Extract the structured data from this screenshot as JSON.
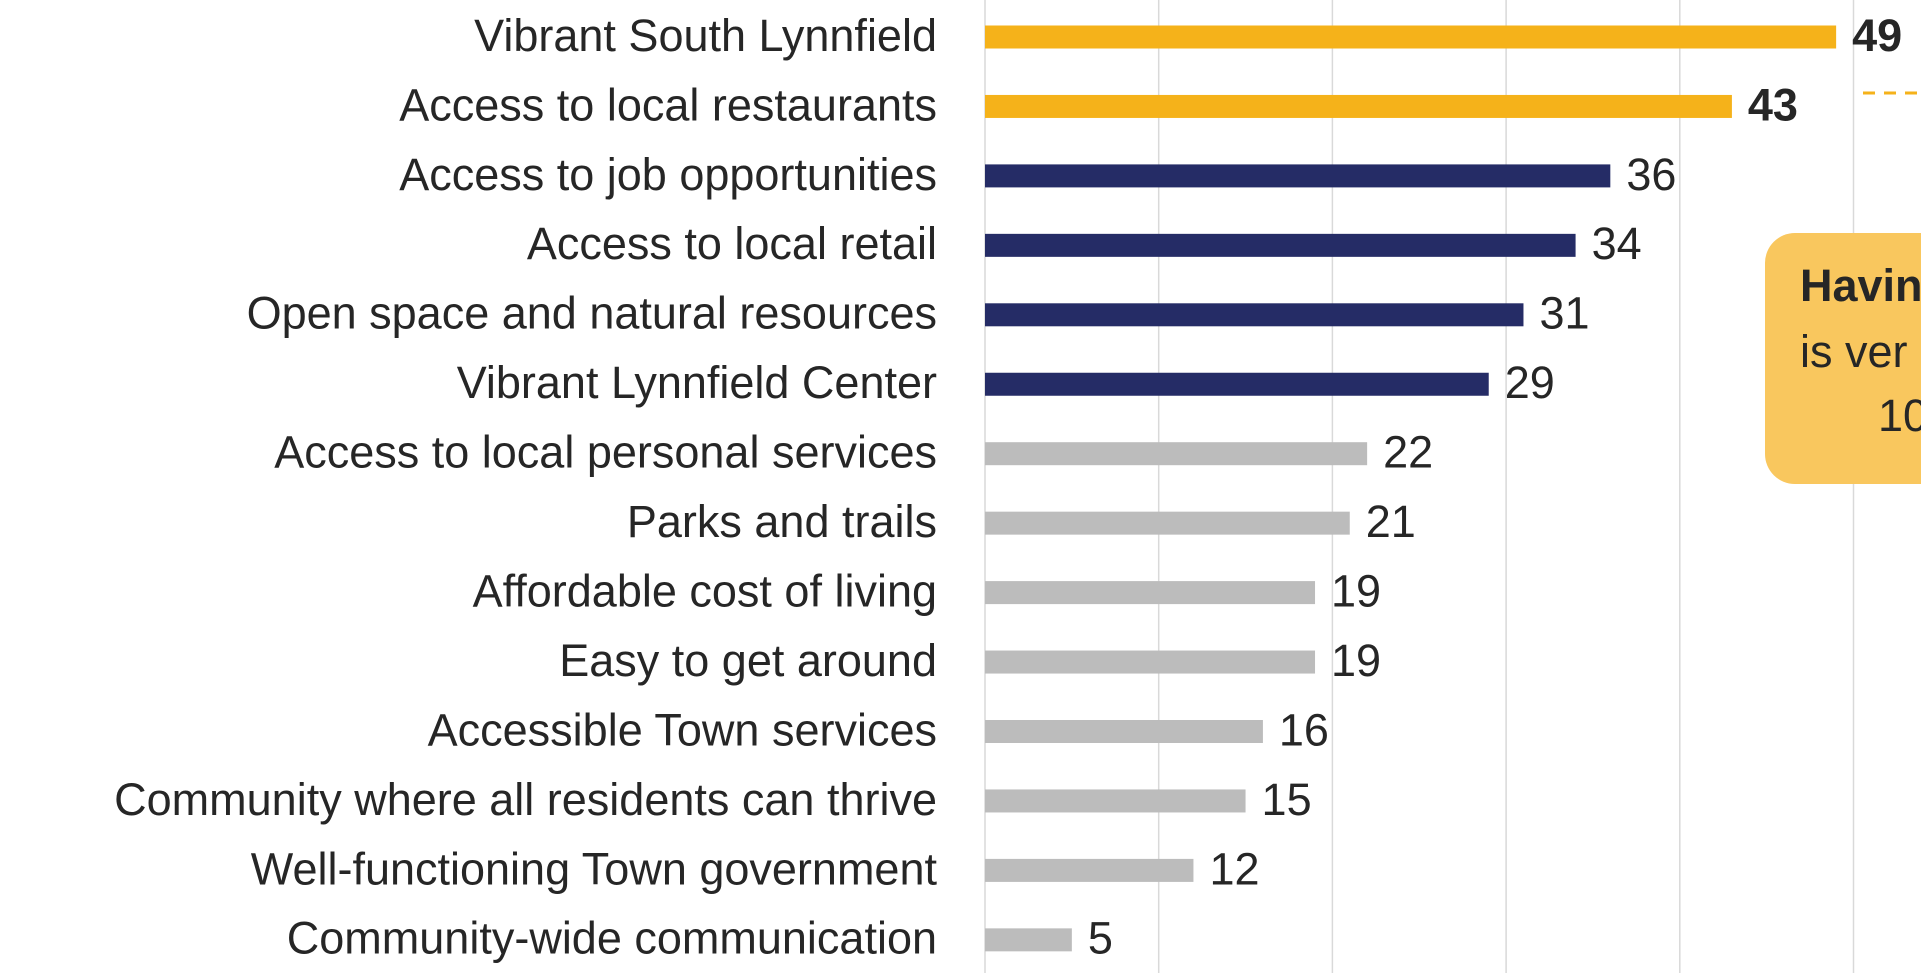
{
  "chart_data": {
    "type": "barh",
    "categories": [
      "Vibrant South Lynnfield",
      "Access to local restaurants",
      "Access to job opportunities",
      "Access to local retail",
      "Open space and natural resources",
      "Vibrant Lynnfield Center",
      "Access to local personal services",
      "Parks and trails",
      "Affordable cost of living",
      "Easy to get around",
      "Accessible Town services",
      "Community where all residents can thrive",
      "Well-functioning Town government",
      "Community-wide communication"
    ],
    "values": [
      49,
      43,
      36,
      34,
      31,
      29,
      22,
      21,
      19,
      19,
      16,
      15,
      12,
      5
    ],
    "colors": [
      "#f5b21a",
      "#f5b21a",
      "#252c66",
      "#252c66",
      "#252c66",
      "#252c66",
      "#bcbcbc",
      "#bcbcbc",
      "#bcbcbc",
      "#bcbcbc",
      "#bcbcbc",
      "#bcbcbc",
      "#bcbcbc",
      "#bcbcbc"
    ],
    "xlim": [
      0,
      50
    ],
    "xticks": [
      0,
      10,
      20,
      30,
      40,
      50
    ],
    "grid": true,
    "annotation": [
      "Havin",
      "is ver",
      "10"
    ]
  }
}
